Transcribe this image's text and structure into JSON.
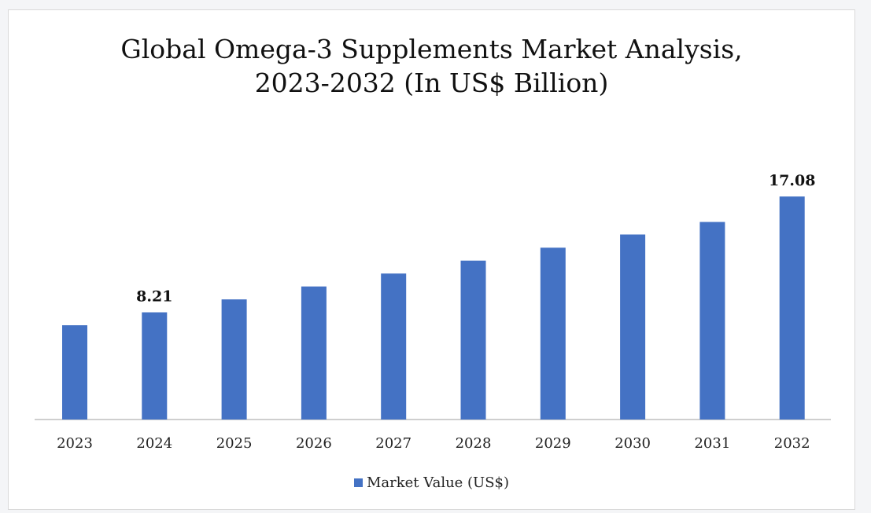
{
  "title_line1": "Global Omega-3 Supplements Market Analysis,",
  "title_line2": "2023-2032 (In US$ Billion)",
  "legend_label": "Market Value (US$)",
  "colors": {
    "bar": "#4472c4",
    "axis": "#bfbfbf",
    "text": "#222222"
  },
  "chart_data": {
    "type": "bar",
    "title": "Global Omega-3 Supplements Market Analysis, 2023-2032 (In US$ Billion)",
    "xlabel": "",
    "ylabel": "",
    "categories": [
      "2023",
      "2024",
      "2025",
      "2026",
      "2027",
      "2028",
      "2029",
      "2030",
      "2031",
      "2032"
    ],
    "series": [
      {
        "name": "Market Value (US$)",
        "values": [
          7.22,
          8.21,
          9.2,
          10.19,
          11.18,
          12.17,
          13.16,
          14.17,
          15.13,
          17.08
        ]
      }
    ],
    "data_labels": [
      {
        "category": "2024",
        "text": "8.21"
      },
      {
        "category": "2032",
        "text": "17.08"
      }
    ],
    "ylim": [
      0,
      18
    ],
    "grid": false,
    "legend_position": "bottom"
  }
}
